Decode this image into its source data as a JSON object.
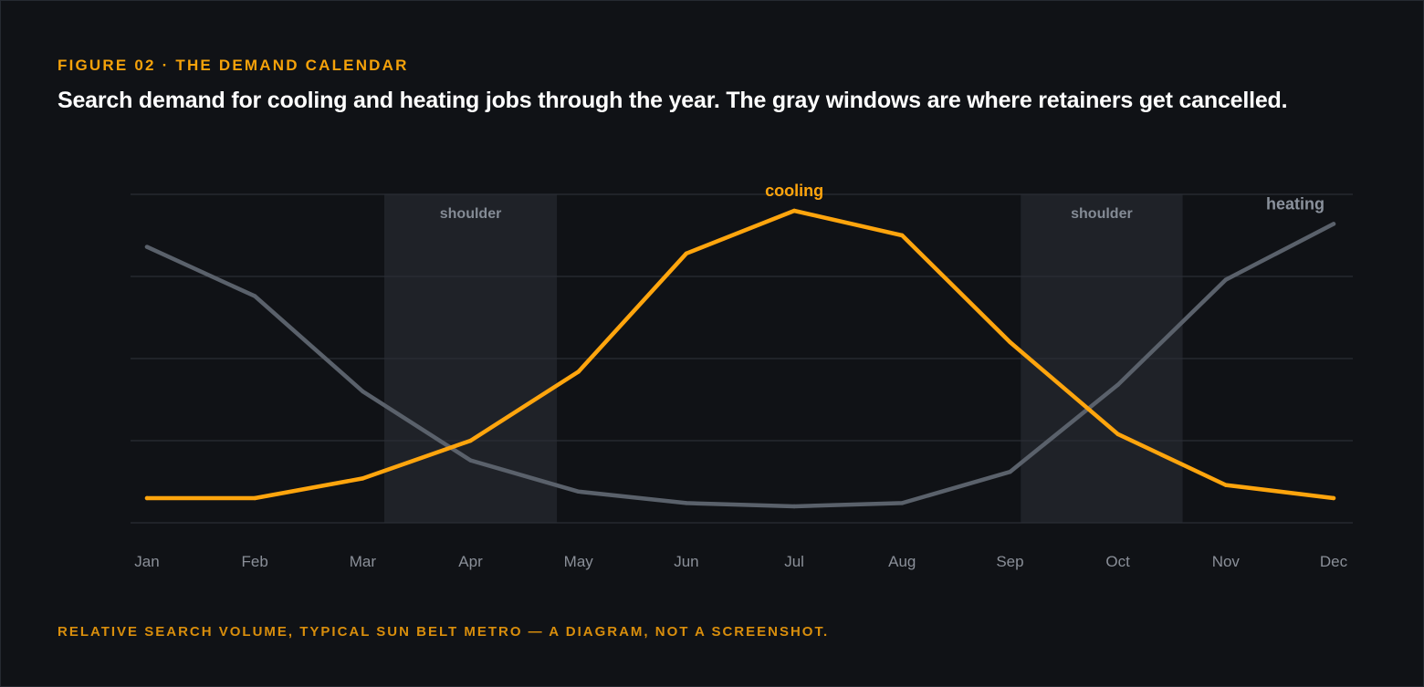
{
  "figure": {
    "eyebrow": "FIGURE 02 · THE DEMAND CALENDAR",
    "headline": "Search demand for cooling and heating jobs through the year. The gray windows are where retainers get cancelled.",
    "footnote": "RELATIVE SEARCH VOLUME, TYPICAL SUN BELT METRO — A DIAGRAM, NOT A SCREENSHOT."
  },
  "colors": {
    "background": "#101216",
    "accent": "#ffa50d",
    "heating_line": "#5a616b",
    "heating_label": "#8a919c",
    "shoulder_band": "#1f2228",
    "shoulder_label": "#848b95",
    "grid": "#2a2e35",
    "tick_label": "#8a8f98"
  },
  "chart_data": {
    "type": "line",
    "title": "",
    "xlabel": "",
    "ylabel": "",
    "categories": [
      "Jan",
      "Feb",
      "Mar",
      "Apr",
      "May",
      "Jun",
      "Jul",
      "Aug",
      "Sep",
      "Oct",
      "Nov",
      "Dec"
    ],
    "ylim": [
      0,
      100
    ],
    "grid": true,
    "y_gridlines": [
      0,
      25,
      50,
      75,
      100
    ],
    "series": [
      {
        "name": "cooling",
        "color": "#ffa50d",
        "values": [
          7.5,
          7.5,
          13.5,
          25,
          46,
          82,
          95,
          87.5,
          55,
          27,
          11.5,
          7.5
        ]
      },
      {
        "name": "heating",
        "color": "#5a616b",
        "values": [
          84,
          69,
          40,
          19,
          9.5,
          6,
          5,
          6,
          15.5,
          42,
          74,
          91
        ]
      }
    ],
    "bands": [
      {
        "label": "shoulder",
        "from": 2.2,
        "to": 3.8
      },
      {
        "label": "shoulder",
        "from": 8.1,
        "to": 9.6
      }
    ]
  }
}
